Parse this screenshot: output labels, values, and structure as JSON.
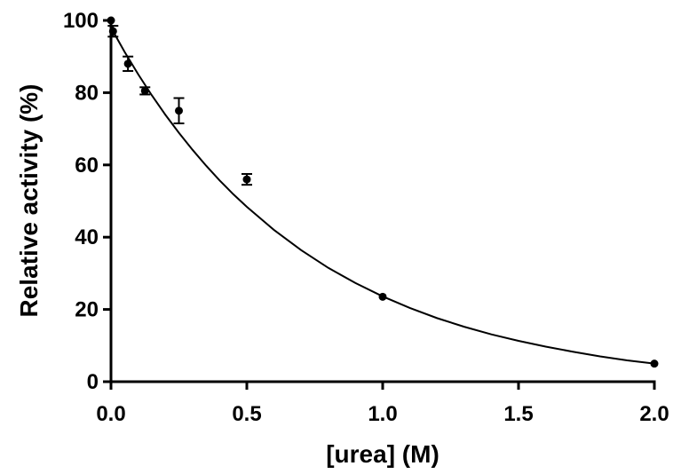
{
  "chart_data": {
    "type": "scatter",
    "title": "",
    "xlabel": "[urea] (M)",
    "ylabel": "Relative activity (%)",
    "xlim": [
      0,
      2
    ],
    "ylim": [
      0,
      100
    ],
    "xticks": [
      "0.0",
      "0.5",
      "1.0",
      "1.5",
      "2.0"
    ],
    "yticks": [
      "0",
      "20",
      "40",
      "60",
      "80",
      "100"
    ],
    "grid": false,
    "legend": "none",
    "series": [
      {
        "type": "scatter-errorbar",
        "points": [
          {
            "x": 0,
            "y": 100,
            "err": 0
          },
          {
            "x": 0.0075,
            "y": 97,
            "err": 1.5
          },
          {
            "x": 0.0625,
            "y": 88,
            "err": 2
          },
          {
            "x": 0.125,
            "y": 80.5,
            "err": 1
          },
          {
            "x": 0.25,
            "y": 75,
            "err": 3.5
          },
          {
            "x": 0.5,
            "y": 56,
            "err": 1.5
          },
          {
            "x": 1.0,
            "y": 23.5,
            "err": 0
          },
          {
            "x": 2.0,
            "y": 5,
            "err": 0
          }
        ]
      },
      {
        "type": "fit-curve",
        "x": [
          0,
          0.05,
          0.1,
          0.15,
          0.2,
          0.25,
          0.3,
          0.35,
          0.4,
          0.45,
          0.5,
          0.6,
          0.7,
          0.8,
          0.9,
          1.0,
          1.1,
          1.2,
          1.3,
          1.4,
          1.5,
          1.6,
          1.7,
          1.8,
          1.9,
          2.0
        ],
        "y": [
          98,
          91.3,
          85.1,
          79.3,
          73.9,
          68.9,
          64.2,
          59.8,
          55.7,
          51.9,
          48.4,
          42.0,
          36.4,
          31.5,
          27.3,
          23.6,
          20.4,
          17.6,
          15.2,
          13.1,
          11.3,
          9.7,
          8.3,
          7.0,
          5.9,
          5.0
        ]
      }
    ]
  }
}
